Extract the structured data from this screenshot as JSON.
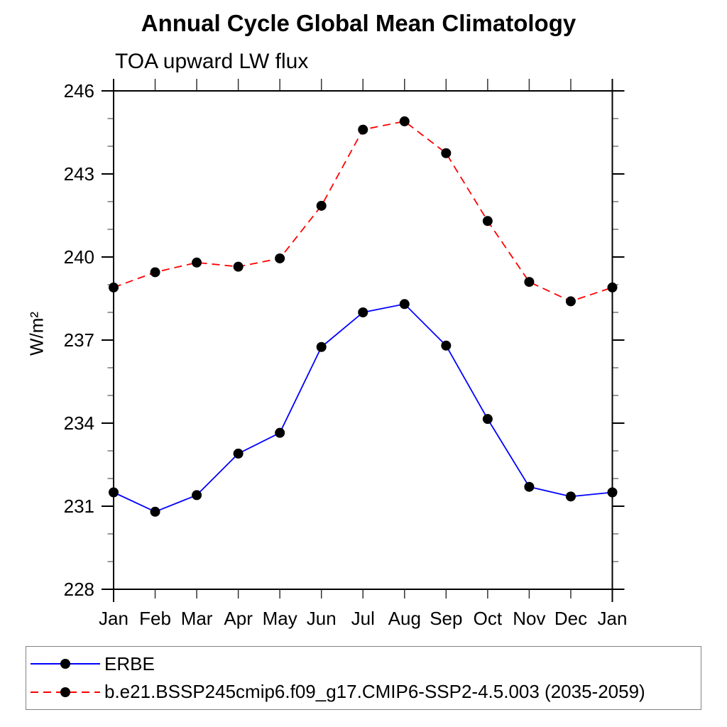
{
  "chart_data": {
    "type": "line",
    "title": "Annual Cycle Global Mean Climatology",
    "subtitle": "TOA upward LW flux",
    "ylabel": "W/m²",
    "xlabel": "",
    "categories": [
      "Jan",
      "Feb",
      "Mar",
      "Apr",
      "May",
      "Jun",
      "Jul",
      "Aug",
      "Sep",
      "Oct",
      "Nov",
      "Dec",
      "Jan"
    ],
    "ylim": [
      228,
      246
    ],
    "y_major_ticks": [
      228,
      231,
      234,
      237,
      240,
      243,
      246
    ],
    "y_minor_step": 1,
    "grid": false,
    "legend_position": "bottom box",
    "marker": {
      "shape": "circle",
      "color": "#000000",
      "radius": 7
    },
    "series": [
      {
        "name": "ERBE",
        "color": "#0000ff",
        "line_style": "solid",
        "values": [
          231.5,
          230.8,
          231.4,
          232.9,
          233.65,
          236.75,
          238.0,
          238.3,
          236.8,
          234.15,
          231.7,
          231.35,
          231.5
        ]
      },
      {
        "name": "b.e21.BSSP245cmip6.f09_g17.CMIP6-SSP2-4.5.003 (2035-2059)",
        "color": "#ff0000",
        "line_style": "dashed",
        "values": [
          238.9,
          239.45,
          239.8,
          239.65,
          239.95,
          241.85,
          244.6,
          244.9,
          243.75,
          241.3,
          239.1,
          238.4,
          238.9
        ]
      }
    ]
  }
}
